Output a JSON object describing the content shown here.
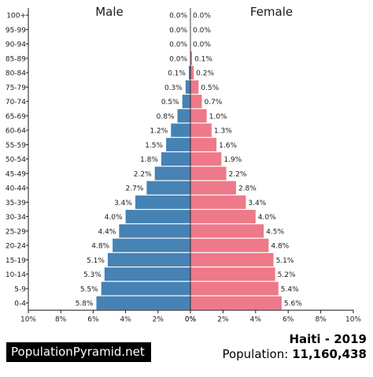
{
  "chart_data": {
    "type": "bar",
    "subtype": "population-pyramid",
    "left_title": "Male",
    "right_title": "Female",
    "categories": [
      "100+",
      "95-99",
      "90-94",
      "85-89",
      "80-84",
      "75-79",
      "70-74",
      "65-69",
      "60-64",
      "55-59",
      "50-54",
      "45-49",
      "40-44",
      "35-39",
      "30-34",
      "25-29",
      "20-24",
      "15-19",
      "10-14",
      "5-9",
      "0-4"
    ],
    "series": [
      {
        "name": "Male",
        "color": "#4682b4",
        "values": [
          0.0,
          0.0,
          0.0,
          0.0,
          0.1,
          0.3,
          0.5,
          0.8,
          1.2,
          1.5,
          1.8,
          2.2,
          2.7,
          3.4,
          4.0,
          4.4,
          4.8,
          5.1,
          5.3,
          5.5,
          5.8
        ],
        "labels": [
          "0.0%",
          "0.0%",
          "0.0%",
          "0.0%",
          "0.1%",
          "0.3%",
          "0.5%",
          "0.8%",
          "1.2%",
          "1.5%",
          "1.8%",
          "2.2%",
          "2.7%",
          "3.4%",
          "4.0%",
          "4.4%",
          "4.8%",
          "5.1%",
          "5.3%",
          "5.5%",
          "5.8%"
        ]
      },
      {
        "name": "Female",
        "color": "#ee7989",
        "values": [
          0.0,
          0.0,
          0.0,
          0.1,
          0.2,
          0.5,
          0.7,
          1.0,
          1.3,
          1.6,
          1.9,
          2.2,
          2.8,
          3.4,
          4.0,
          4.5,
          4.8,
          5.1,
          5.2,
          5.4,
          5.6
        ],
        "labels": [
          "0.0%",
          "0.0%",
          "0.0%",
          "0.1%",
          "0.2%",
          "0.5%",
          "0.7%",
          "1.0%",
          "1.3%",
          "1.6%",
          "1.9%",
          "2.2%",
          "2.8%",
          "3.4%",
          "4.0%",
          "4.5%",
          "4.8%",
          "5.1%",
          "5.2%",
          "5.4%",
          "5.6%"
        ]
      }
    ],
    "xlim": [
      0,
      10
    ],
    "x_ticks_left": [
      "10%",
      "8%",
      "6%",
      "4%",
      "2%",
      "0%"
    ],
    "x_ticks_right": [
      "0%",
      "2%",
      "4%",
      "6%",
      "8%",
      "10%"
    ]
  },
  "footer": {
    "brand": "PopulationPyramid.net",
    "place": "Haiti - 2019",
    "population_label": "Population:",
    "population_value": "11,160,438"
  }
}
